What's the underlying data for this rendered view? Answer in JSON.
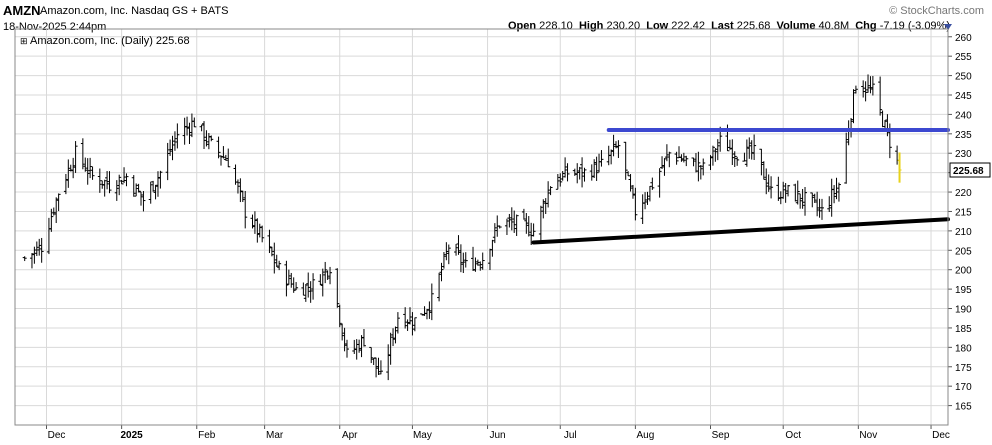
{
  "header": {
    "ticker": "AMZN",
    "company_exchange": "Amazon.com, Inc. Nasdaq GS + BATS",
    "brand": "© StockCharts.com",
    "datetime": "18-Nov-2025 2:44pm",
    "stats": {
      "open_label": "Open",
      "open": "228.10",
      "high_label": "High",
      "high": "230.20",
      "low_label": "Low",
      "low": "222.42",
      "last_label": "Last",
      "last": "225.68",
      "volume_label": "Volume",
      "volume": "40.8M",
      "chg_label": "Chg",
      "chg": "-7.19 (-3.09%)"
    },
    "plot_label": "Amazon.com, Inc. (Daily) 225.68",
    "plot_label_icon": "plus-minus-icon"
  },
  "colors": {
    "grid": "#d9d9d9",
    "price_bar": "#000000",
    "last_bar": "#e8d21a",
    "resistance_line": "#3c48d0",
    "support_line": "#000000",
    "price_tag_border": "#000000"
  },
  "chart_data": {
    "type": "ohlc",
    "title": "Amazon.com, Inc. (Daily)",
    "y_axis": {
      "side": "right",
      "range": [
        160,
        262
      ],
      "ticks": [
        165,
        170,
        175,
        180,
        185,
        190,
        195,
        200,
        205,
        210,
        215,
        220,
        225,
        230,
        235,
        240,
        245,
        250,
        255,
        260
      ]
    },
    "x_axis": {
      "labels": [
        {
          "text": "Dec",
          "date": "2024-12-01"
        },
        {
          "text": "2025",
          "date": "2025-01-01",
          "bold": true
        },
        {
          "text": "Feb",
          "date": "2025-02-01"
        },
        {
          "text": "Mar",
          "date": "2025-03-01"
        },
        {
          "text": "Apr",
          "date": "2025-04-01"
        },
        {
          "text": "May",
          "date": "2025-05-01"
        },
        {
          "text": "Jun",
          "date": "2025-06-01"
        },
        {
          "text": "Jul",
          "date": "2025-07-01"
        },
        {
          "text": "Aug",
          "date": "2025-08-01"
        },
        {
          "text": "Sep",
          "date": "2025-09-01"
        },
        {
          "text": "Oct",
          "date": "2025-10-01"
        },
        {
          "text": "Nov",
          "date": "2025-11-01"
        },
        {
          "text": "Dec",
          "date": "2025-12-01"
        }
      ]
    },
    "last_price_tag": "225.68",
    "grid": true,
    "closes_approx": [
      {
        "date": "2024-11-22",
        "close": 203
      },
      {
        "date": "2024-11-29",
        "close": 206
      },
      {
        "date": "2024-12-06",
        "close": 220
      },
      {
        "date": "2024-12-13",
        "close": 230
      },
      {
        "date": "2024-12-20",
        "close": 224
      },
      {
        "date": "2024-12-27",
        "close": 222
      },
      {
        "date": "2025-01-03",
        "close": 224
      },
      {
        "date": "2025-01-10",
        "close": 218
      },
      {
        "date": "2025-01-17",
        "close": 225
      },
      {
        "date": "2025-01-24",
        "close": 235
      },
      {
        "date": "2025-01-31",
        "close": 238
      },
      {
        "date": "2025-02-07",
        "close": 232
      },
      {
        "date": "2025-02-14",
        "close": 228
      },
      {
        "date": "2025-02-21",
        "close": 215
      },
      {
        "date": "2025-02-28",
        "close": 208
      },
      {
        "date": "2025-03-07",
        "close": 200
      },
      {
        "date": "2025-03-14",
        "close": 195
      },
      {
        "date": "2025-03-21",
        "close": 196
      },
      {
        "date": "2025-03-28",
        "close": 201
      },
      {
        "date": "2025-04-04",
        "close": 178
      },
      {
        "date": "2025-04-11",
        "close": 182
      },
      {
        "date": "2025-04-18",
        "close": 172
      },
      {
        "date": "2025-04-25",
        "close": 188
      },
      {
        "date": "2025-05-02",
        "close": 187
      },
      {
        "date": "2025-05-09",
        "close": 192
      },
      {
        "date": "2025-05-16",
        "close": 206
      },
      {
        "date": "2025-05-23",
        "close": 201
      },
      {
        "date": "2025-05-30",
        "close": 203
      },
      {
        "date": "2025-06-06",
        "close": 212
      },
      {
        "date": "2025-06-13",
        "close": 212
      },
      {
        "date": "2025-06-20",
        "close": 210
      },
      {
        "date": "2025-06-27",
        "close": 222
      },
      {
        "date": "2025-07-04",
        "close": 225
      },
      {
        "date": "2025-07-11",
        "close": 225
      },
      {
        "date": "2025-07-18",
        "close": 227
      },
      {
        "date": "2025-07-25",
        "close": 232
      },
      {
        "date": "2025-08-01",
        "close": 215
      },
      {
        "date": "2025-08-08",
        "close": 222
      },
      {
        "date": "2025-08-15",
        "close": 230
      },
      {
        "date": "2025-08-22",
        "close": 228
      },
      {
        "date": "2025-08-29",
        "close": 226
      },
      {
        "date": "2025-09-05",
        "close": 233
      },
      {
        "date": "2025-09-12",
        "close": 230
      },
      {
        "date": "2025-09-19",
        "close": 230
      },
      {
        "date": "2025-09-26",
        "close": 220
      },
      {
        "date": "2025-10-03",
        "close": 220
      },
      {
        "date": "2025-10-10",
        "close": 218
      },
      {
        "date": "2025-10-17",
        "close": 215
      },
      {
        "date": "2025-10-24",
        "close": 222
      },
      {
        "date": "2025-10-31",
        "close": 248
      },
      {
        "date": "2025-11-07",
        "close": 246
      },
      {
        "date": "2025-11-14",
        "close": 233
      },
      {
        "date": "2025-11-18",
        "close": 225.68
      }
    ],
    "trendlines": [
      {
        "name": "resistance",
        "color": "#3c48d0",
        "start": {
          "date": "2025-07-21",
          "value": 236
        },
        "end": {
          "date": "2025-11-30",
          "value": 236
        }
      },
      {
        "name": "support",
        "color": "#000000",
        "start": {
          "date": "2025-06-20",
          "value": 207
        },
        "end": {
          "date": "2025-11-30",
          "value": 213
        }
      }
    ]
  }
}
